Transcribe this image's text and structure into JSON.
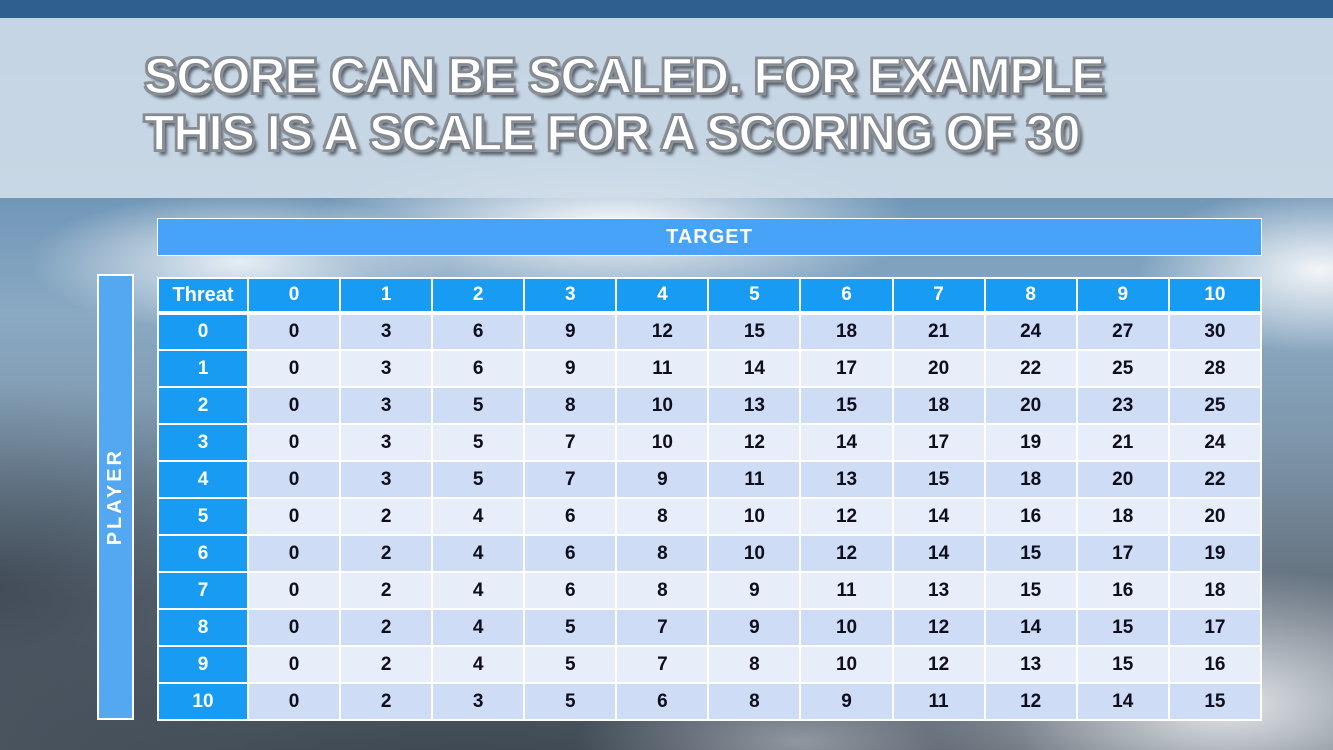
{
  "slide": {
    "title_line1": "SCORE CAN BE SCALED. FOR EXAMPLE",
    "title_line2": "THIS IS A SCALE FOR A SCORING OF 30"
  },
  "matrix": {
    "target_label": "TARGET",
    "player_label": "PLAYER",
    "corner_label": "Threat",
    "column_headers": [
      "0",
      "1",
      "2",
      "3",
      "4",
      "5",
      "6",
      "7",
      "8",
      "9",
      "10"
    ],
    "row_headers": [
      "0",
      "1",
      "2",
      "3",
      "4",
      "5",
      "6",
      "7",
      "8",
      "9",
      "10"
    ],
    "rows": [
      [
        0,
        3,
        6,
        9,
        12,
        15,
        18,
        21,
        24,
        27,
        30
      ],
      [
        0,
        3,
        6,
        9,
        11,
        14,
        17,
        20,
        22,
        25,
        28
      ],
      [
        0,
        3,
        5,
        8,
        10,
        13,
        15,
        18,
        20,
        23,
        25
      ],
      [
        0,
        3,
        5,
        7,
        10,
        12,
        14,
        17,
        19,
        21,
        24
      ],
      [
        0,
        3,
        5,
        7,
        9,
        11,
        13,
        15,
        18,
        20,
        22
      ],
      [
        0,
        2,
        4,
        6,
        8,
        10,
        12,
        14,
        16,
        18,
        20
      ],
      [
        0,
        2,
        4,
        6,
        8,
        10,
        12,
        14,
        15,
        17,
        19
      ],
      [
        0,
        2,
        4,
        6,
        8,
        9,
        11,
        13,
        15,
        16,
        18
      ],
      [
        0,
        2,
        4,
        5,
        7,
        9,
        10,
        12,
        14,
        15,
        17
      ],
      [
        0,
        2,
        4,
        5,
        7,
        8,
        10,
        12,
        13,
        15,
        16
      ],
      [
        0,
        2,
        3,
        5,
        6,
        8,
        9,
        11,
        12,
        14,
        15
      ]
    ]
  },
  "chart_data": {
    "type": "table",
    "title": "Score scale matrix for a scoring of 30",
    "column_axis_label": "TARGET",
    "row_axis_label": "PLAYER",
    "corner_label": "Threat",
    "columns": [
      0,
      1,
      2,
      3,
      4,
      5,
      6,
      7,
      8,
      9,
      10
    ],
    "row_labels": [
      0,
      1,
      2,
      3,
      4,
      5,
      6,
      7,
      8,
      9,
      10
    ],
    "values": [
      [
        0,
        3,
        6,
        9,
        12,
        15,
        18,
        21,
        24,
        27,
        30
      ],
      [
        0,
        3,
        6,
        9,
        11,
        14,
        17,
        20,
        22,
        25,
        28
      ],
      [
        0,
        3,
        5,
        8,
        10,
        13,
        15,
        18,
        20,
        23,
        25
      ],
      [
        0,
        3,
        5,
        7,
        10,
        12,
        14,
        17,
        19,
        21,
        24
      ],
      [
        0,
        3,
        5,
        7,
        9,
        11,
        13,
        15,
        18,
        20,
        22
      ],
      [
        0,
        2,
        4,
        6,
        8,
        10,
        12,
        14,
        16,
        18,
        20
      ],
      [
        0,
        2,
        4,
        6,
        8,
        10,
        12,
        14,
        15,
        17,
        19
      ],
      [
        0,
        2,
        4,
        6,
        8,
        9,
        11,
        13,
        15,
        16,
        18
      ],
      [
        0,
        2,
        4,
        5,
        7,
        9,
        10,
        12,
        14,
        15,
        17
      ],
      [
        0,
        2,
        4,
        5,
        7,
        8,
        10,
        12,
        13,
        15,
        16
      ],
      [
        0,
        2,
        3,
        5,
        6,
        8,
        9,
        11,
        12,
        14,
        15
      ]
    ]
  },
  "colors": {
    "top_strip": "#2e5f8e",
    "banner": "#cfdce8",
    "target_bar_blue": "#47a3f8",
    "player_bar_blue": "#54a7f1",
    "header_blue": "#189bf2",
    "row_even": "#cfdcf5",
    "row_odd": "#e7edf9",
    "title_text": "#ffffff",
    "body_text": "#0e0e1c"
  }
}
